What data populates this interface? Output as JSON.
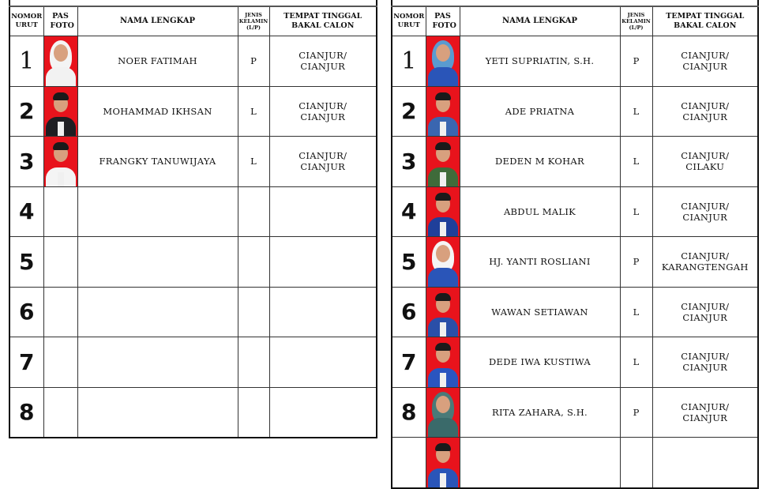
{
  "headers": {
    "nomor_urut": "NOMOR URUT",
    "pas_foto": "PAS FOTO",
    "nama_lengkap": "NAMA LENGKAP",
    "jenis_kelamin": "JENIS KELAMIN (L/P)",
    "tempat_tinggal": "TEMPAT TINGGAL BAKAL CALON"
  },
  "left_table": {
    "rows": [
      {
        "no": "1",
        "name": "NOER FATIMAH",
        "gender": "P",
        "place1": "CIANJUR/",
        "place2": "CIANJUR",
        "photo": {
          "bg": "#e8131c",
          "clothes": "#f2f2f2",
          "cover": "#f4f4f4"
        }
      },
      {
        "no": "2",
        "name": "MOHAMMAD IKHSAN",
        "gender": "L",
        "place1": "CIANJUR/",
        "place2": "CIANJUR",
        "photo": {
          "bg": "#e8131c",
          "clothes": "#1e1e22",
          "cover": ""
        }
      },
      {
        "no": "3",
        "name": "FRANGKY TANUWIJAYA",
        "gender": "L",
        "place1": "CIANJUR/",
        "place2": "CIANJUR",
        "photo": {
          "bg": "#e8131c",
          "clothes": "#f4f4f4",
          "cover": ""
        }
      },
      {
        "no": "4",
        "name": "",
        "gender": "",
        "place1": "",
        "place2": "",
        "photo": null
      },
      {
        "no": "5",
        "name": "",
        "gender": "",
        "place1": "",
        "place2": "",
        "photo": null
      },
      {
        "no": "6",
        "name": "",
        "gender": "",
        "place1": "",
        "place2": "",
        "photo": null
      },
      {
        "no": "7",
        "name": "",
        "gender": "",
        "place1": "",
        "place2": "",
        "photo": null
      },
      {
        "no": "8",
        "name": "",
        "gender": "",
        "place1": "",
        "place2": "",
        "photo": null
      }
    ]
  },
  "right_table": {
    "rows": [
      {
        "no": "1",
        "name": "YETI SUPRIATIN, S.H.",
        "gender": "P",
        "place1": "CIANJUR/",
        "place2": "CIANJUR",
        "photo": {
          "bg": "#e8131c",
          "clothes": "#2a55b8",
          "cover": "#5a9bd0"
        }
      },
      {
        "no": "2",
        "name": "ADE PRIATNA",
        "gender": "L",
        "place1": "CIANJUR/",
        "place2": "CIANJUR",
        "photo": {
          "bg": "#e8131c",
          "clothes": "#3a66b0",
          "cover": ""
        }
      },
      {
        "no": "3",
        "name": "DEDEN M KOHAR",
        "gender": "L",
        "place1": "CIANJUR/",
        "place2": "CILAKU",
        "photo": {
          "bg": "#e8131c",
          "clothes": "#3f6b3a",
          "cover": ""
        }
      },
      {
        "no": "4",
        "name": "ABDUL MALIK",
        "gender": "L",
        "place1": "CIANJUR/",
        "place2": "CIANJUR",
        "photo": {
          "bg": "#e8131c",
          "clothes": "#1f3f9a",
          "cover": ""
        }
      },
      {
        "no": "5",
        "name": "HJ. YANTI ROSLIANI",
        "gender": "P",
        "place1": "CIANJUR/",
        "place2": "KARANGTENGAH",
        "photo": {
          "bg": "#e8131c",
          "clothes": "#2a55b8",
          "cover": "#f4f4f4"
        }
      },
      {
        "no": "6",
        "name": "WAWAN SETIAWAN",
        "gender": "L",
        "place1": "CIANJUR/",
        "place2": "CIANJUR",
        "photo": {
          "bg": "#e8131c",
          "clothes": "#2a4fa8",
          "cover": ""
        }
      },
      {
        "no": "7",
        "name": "DEDE IWA KUSTIWA",
        "gender": "L",
        "place1": "CIANJUR/",
        "place2": "CIANJUR",
        "photo": {
          "bg": "#e8131c",
          "clothes": "#2a55c0",
          "cover": ""
        }
      },
      {
        "no": "8",
        "name": "RITA ZAHARA, S.H.",
        "gender": "P",
        "place1": "CIANJUR/",
        "place2": "CIANJUR",
        "photo": {
          "bg": "#e8131c",
          "clothes": "#3a6a6a",
          "cover": "#4a7a78"
        }
      },
      {
        "no": "",
        "name": "",
        "gender": "",
        "place1": "",
        "place2": "",
        "photo": {
          "bg": "#e8131c",
          "clothes": "#2a55b8",
          "cover": ""
        }
      }
    ]
  }
}
